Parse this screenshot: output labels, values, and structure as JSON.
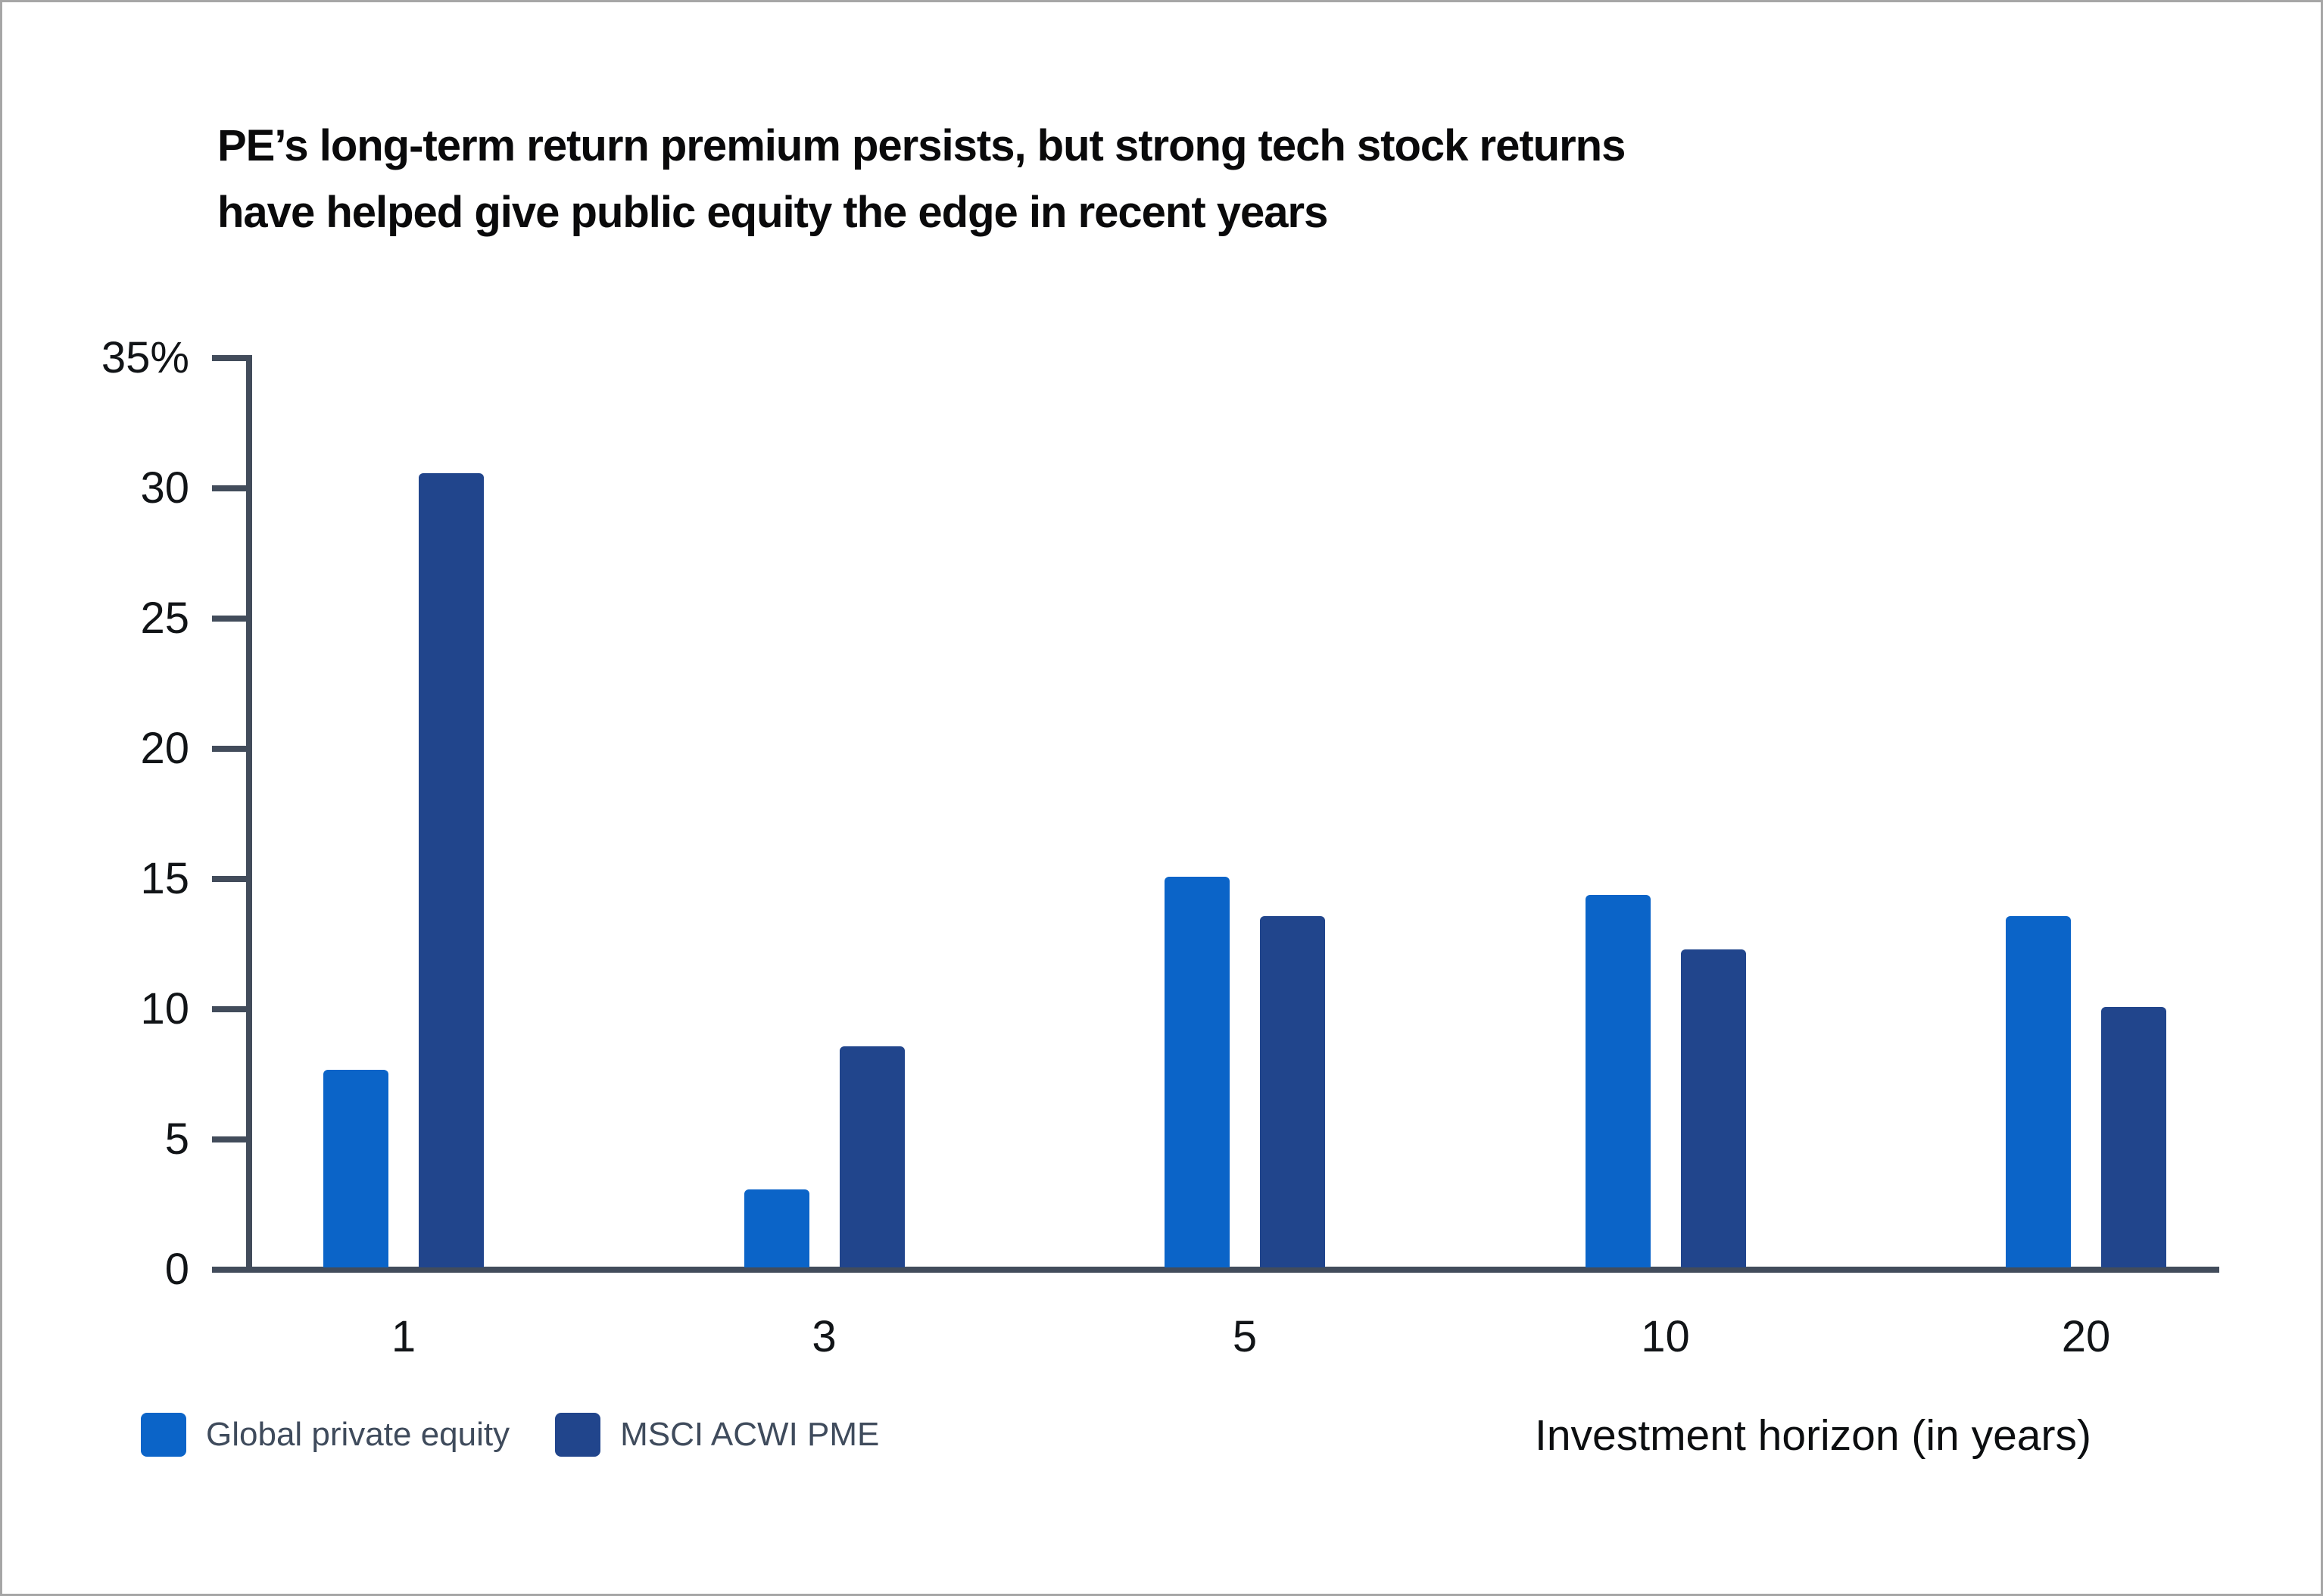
{
  "title": {
    "lines": [
      "PE’s long-term return premium persists, but strong tech stock returns",
      "have helped give public equity the edge in recent years"
    ]
  },
  "x_axis_label": "Investment horizon (in years)",
  "legend": {
    "items": [
      {
        "label": "Global private equity",
        "color": "#0b64c8"
      },
      {
        "label": "MSCI ACWI PME",
        "color": "#21458c"
      }
    ]
  },
  "colors": {
    "axis": "#424c5b",
    "tick_label": "#111417",
    "legend_text": "#3f4b5c",
    "title_text": "#0a0a0b",
    "series_1": "#0b64c8",
    "series_2": "#21458c"
  },
  "chart_data": {
    "type": "bar",
    "title": "PE’s long-term return premium persists, but strong tech stock returns have helped give public equity the edge in recent years",
    "categories": [
      "1",
      "3",
      "5",
      "10",
      "20"
    ],
    "series": [
      {
        "name": "Global private equity",
        "color": "#0b64c8",
        "values": [
          7.6,
          3.0,
          15.0,
          14.3,
          13.5
        ]
      },
      {
        "name": "MSCI ACWI PME",
        "color": "#21458c",
        "values": [
          30.5,
          8.5,
          13.5,
          12.2,
          10.0
        ]
      }
    ],
    "xlabel": "Investment horizon (in years)",
    "ylabel": "",
    "ylim": [
      0,
      35
    ],
    "ytick_step": 5,
    "ytick_labels": [
      "0",
      "5",
      "10",
      "15",
      "20",
      "25",
      "30",
      "35%"
    ],
    "grid": false,
    "legend_position": "bottom-left"
  }
}
